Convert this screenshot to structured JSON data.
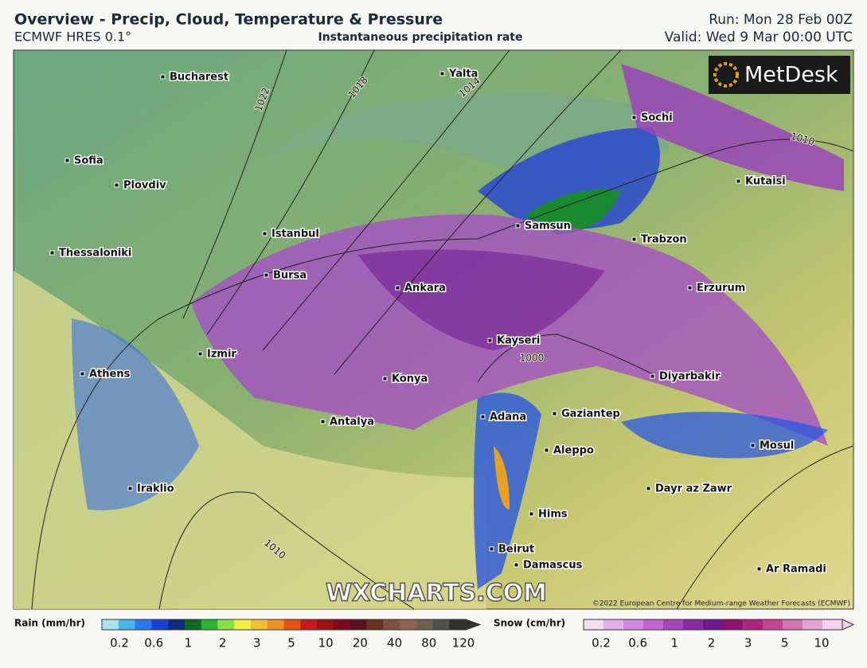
{
  "header": {
    "title": "Overview - Precip, Cloud, Temperature & Pressure",
    "model": "ECMWF HRES 0.1°",
    "subtitle": "Instantaneous precipitation rate",
    "run": "Run: Mon 28 Feb 00Z",
    "valid": "Valid: Wed 9 Mar 00:00 UTC"
  },
  "map": {
    "logo": "MetDesk",
    "watermark": "WXCHARTS.COM",
    "copyright": "©2022 European Centre for Medium-range Weather Forecasts (ECMWF)",
    "cities": [
      "Bucharest",
      "Yalta",
      "Sochi",
      "Sofia",
      "Plovdiv",
      "Kutaisi",
      "Istanbul",
      "Samsun",
      "Trabzon",
      "Thessaloniki",
      "Bursa",
      "Ankara",
      "Erzurum",
      "Kayseri",
      "Izmir",
      "Athens",
      "Konya",
      "Diyarbakir",
      "Adana",
      "Gaziantep",
      "Antalya",
      "Aleppo",
      "Mosul",
      "Iraklio",
      "Dayr az Zawr",
      "Hims",
      "Beirut",
      "Damascus",
      "Ar Ramadi"
    ],
    "isobars": [
      "1022",
      "1018",
      "1014",
      "1010",
      "1010",
      "1000"
    ]
  },
  "legend": {
    "rain": {
      "title": "Rain (mm/hr)",
      "labels": [
        "0.2",
        "0.6",
        "1",
        "2",
        "3",
        "5",
        "10",
        "20",
        "40",
        "80",
        "120"
      ],
      "colors": [
        "#a8e4f0",
        "#48b4f0",
        "#2878f0",
        "#1a40d8",
        "#0c2a88",
        "#0a6a22",
        "#2ab432",
        "#88e040",
        "#f0f040",
        "#f0c030",
        "#f09020",
        "#e85010",
        "#c81818",
        "#a01010",
        "#800818",
        "#5a1020",
        "#6a3020",
        "#805040",
        "#906050",
        "#706050",
        "#505050",
        "#303030"
      ]
    },
    "snow": {
      "title": "Snow (cm/hr)",
      "labels": [
        "0.2",
        "0.6",
        "1",
        "2",
        "3",
        "5",
        "10"
      ],
      "colors": [
        "#f4dcf4",
        "#e4b0ec",
        "#d488e4",
        "#c464d4",
        "#a844bc",
        "#8c2ca4",
        "#701890",
        "#901070",
        "#b02480",
        "#c44494",
        "#d472b4",
        "#e4a4d4",
        "#f2d2ec"
      ]
    }
  }
}
